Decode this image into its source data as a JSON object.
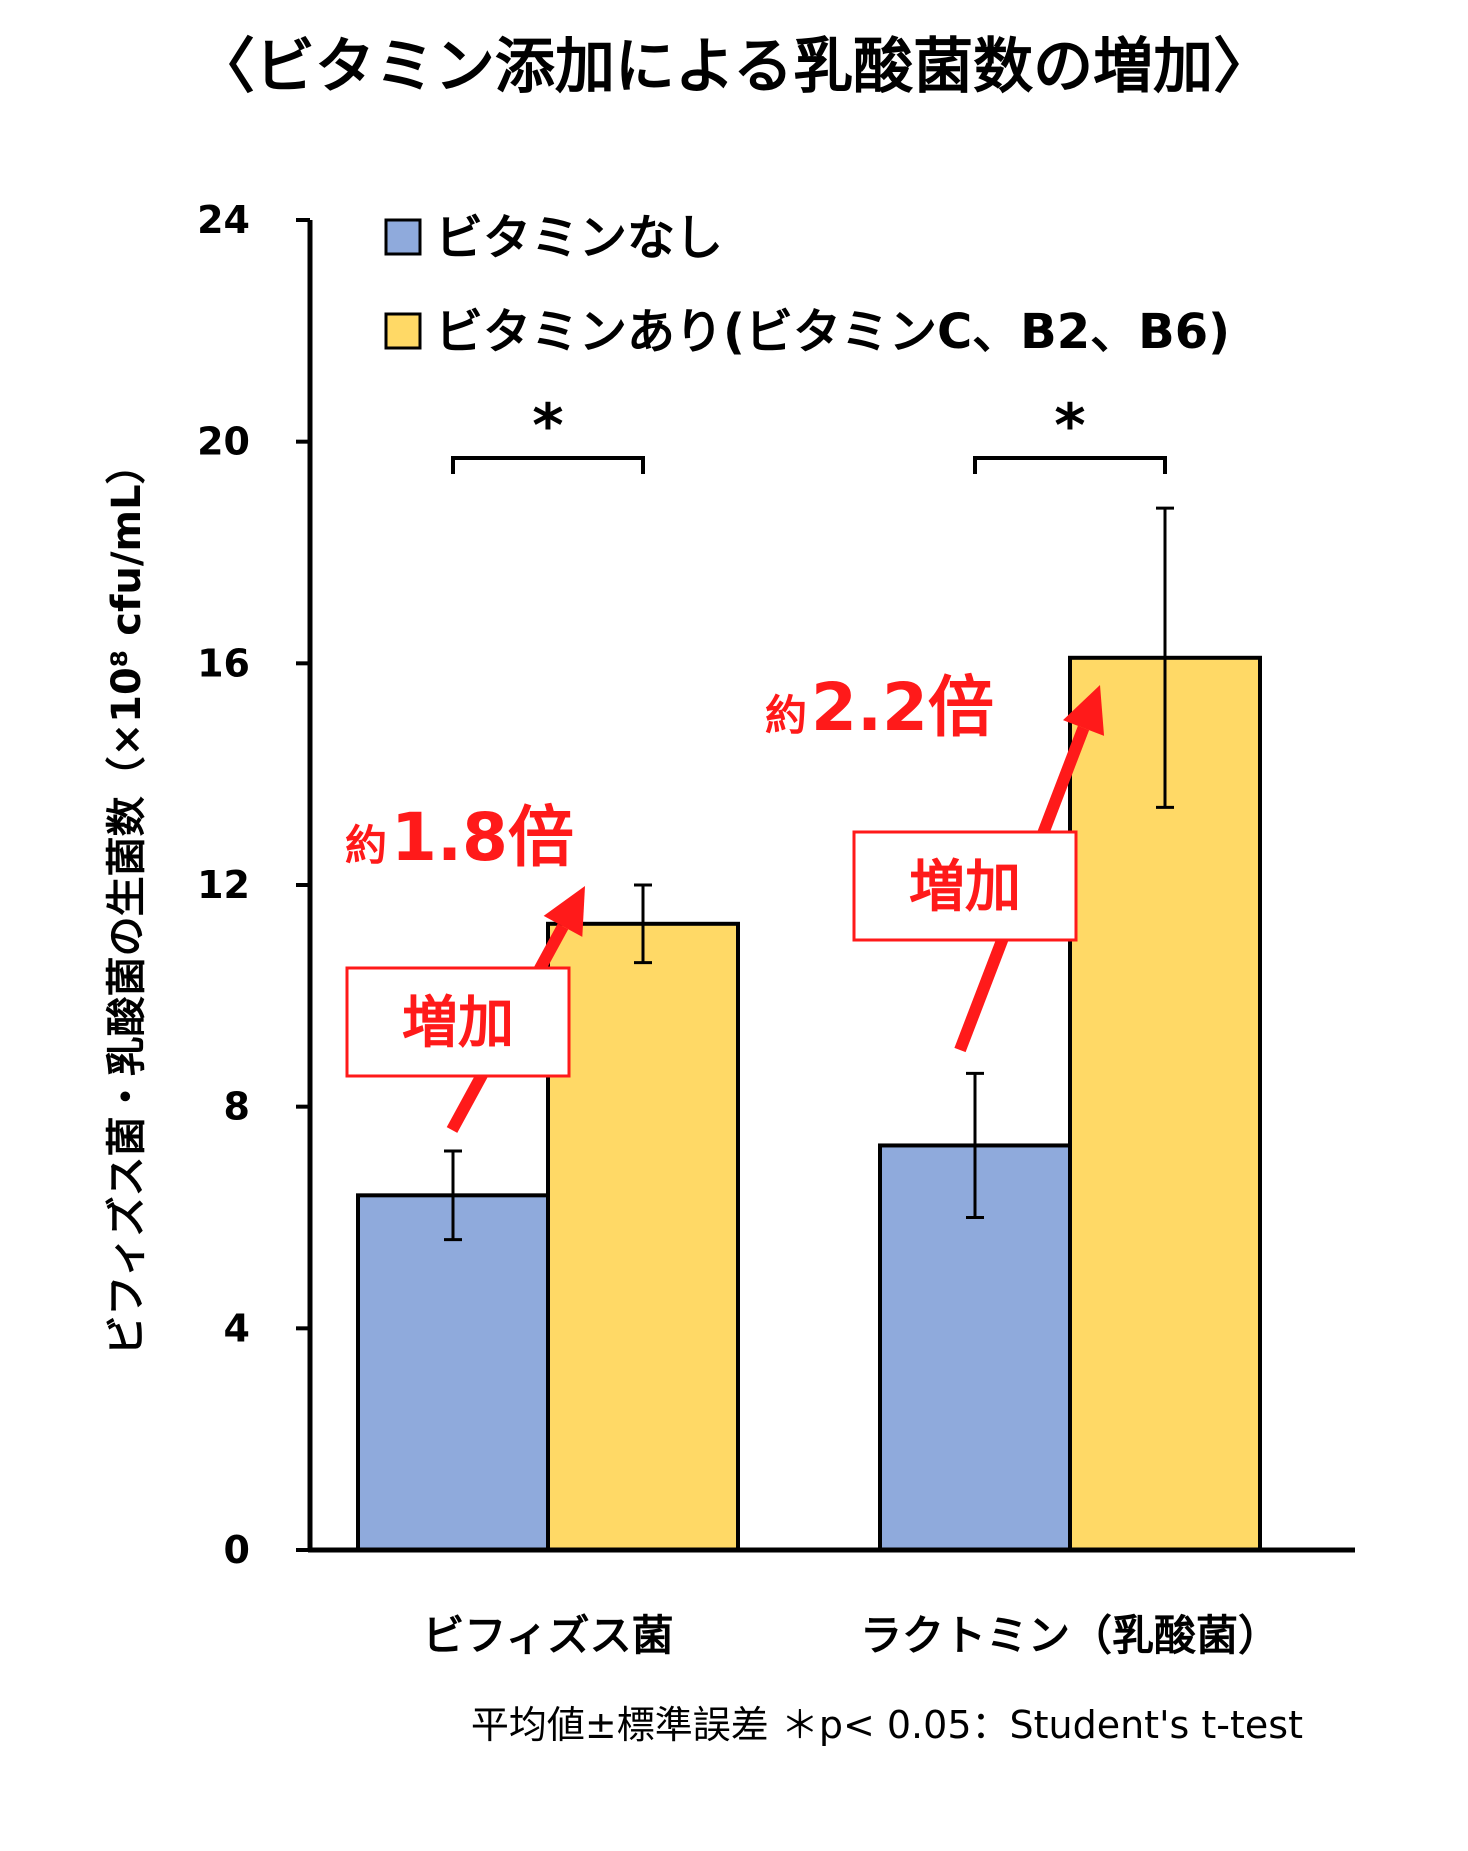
{
  "chart_data": {
    "type": "bar",
    "title": "〈ビタミン添加による乳酸菌数の増加〉",
    "ylabel": "ビフィズス菌・乳酸菌の生菌数（×10⁸ cfu/mL）",
    "xlabel": "",
    "ylim": [
      0,
      24
    ],
    "yticks": [
      0,
      4,
      8,
      12,
      16,
      20,
      24
    ],
    "categories": [
      "ビフィズス菌",
      "ラクトミン（乳酸菌）"
    ],
    "series": [
      {
        "name": "ビタミンなし",
        "color": "#8faadc",
        "values": [
          6.4,
          7.3
        ],
        "errors": [
          0.8,
          1.3
        ]
      },
      {
        "name": "ビタミンあり(ビタミンC、B2、B6)",
        "color": "#ffd966",
        "values": [
          11.3,
          16.1
        ],
        "errors": [
          0.7,
          2.7
        ]
      }
    ],
    "legend_position": "top-left",
    "grid": false,
    "significance": [
      "*",
      "*"
    ],
    "annotations": [
      {
        "prefix": "約",
        "value": "1.8倍",
        "box_text": "増加",
        "category": "ビフィズス菌"
      },
      {
        "prefix": "約",
        "value": "2.2倍",
        "box_text": "増加",
        "category": "ラクトミン（乳酸菌）"
      }
    ],
    "accent_color": "#ff1a1a",
    "footnote": "平均値±標準誤差 ＊p< 0.05：Student's t-test"
  }
}
